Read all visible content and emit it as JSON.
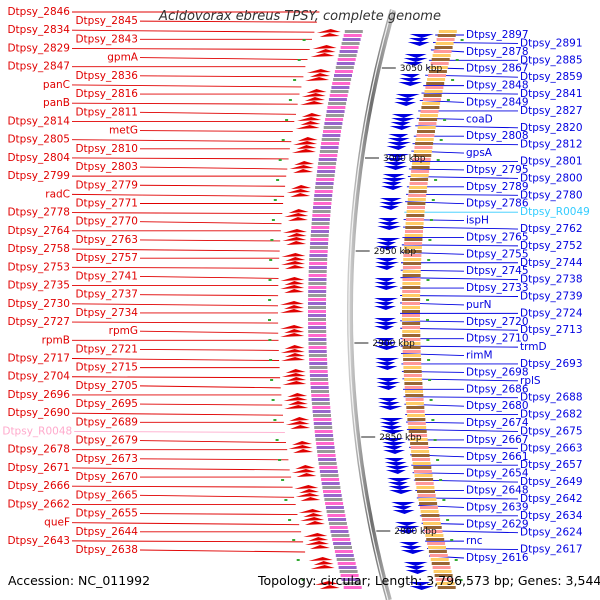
{
  "title": "Acidovorax ebreus TPSY, complete genome",
  "footer": {
    "accession": "Accession: NC_011992",
    "summary": "Topology: circular; Length: 3,796,573 bp; Genes: 3,544"
  },
  "colors": {
    "left_strand": "#e00000",
    "right_strand": "#0000e0",
    "rrna": "#ffaacc",
    "trna": "#33ccff",
    "backbone": "#999999"
  },
  "ticks": [
    {
      "label": "3050 kbp"
    },
    {
      "label": "3000 kbp"
    },
    {
      "label": "2950 kbp"
    },
    {
      "label": "2900 kbp"
    },
    {
      "label": "2850 kbp"
    },
    {
      "label": "2800 kbp"
    }
  ],
  "left_labels": [
    {
      "text": "Dtpsy_2846",
      "kind": "cds"
    },
    {
      "text": "Dtpsy_2845",
      "kind": "cds"
    },
    {
      "text": "Dtpsy_2834",
      "kind": "cds"
    },
    {
      "text": "Dtpsy_2843",
      "kind": "cds"
    },
    {
      "text": "Dtpsy_2829",
      "kind": "cds"
    },
    {
      "text": "gpmA",
      "kind": "cds"
    },
    {
      "text": "Dtpsy_2847",
      "kind": "cds"
    },
    {
      "text": "Dtpsy_2836",
      "kind": "cds"
    },
    {
      "text": "panC",
      "kind": "cds"
    },
    {
      "text": "Dtpsy_2816",
      "kind": "cds"
    },
    {
      "text": "panB",
      "kind": "cds"
    },
    {
      "text": "Dtpsy_2811",
      "kind": "cds"
    },
    {
      "text": "Dtpsy_2814",
      "kind": "cds"
    },
    {
      "text": "metG",
      "kind": "cds"
    },
    {
      "text": "Dtpsy_2805",
      "kind": "cds"
    },
    {
      "text": "Dtpsy_2810",
      "kind": "cds"
    },
    {
      "text": "Dtpsy_2804",
      "kind": "cds"
    },
    {
      "text": "Dtpsy_2803",
      "kind": "cds"
    },
    {
      "text": "Dtpsy_2799",
      "kind": "cds"
    },
    {
      "text": "Dtpsy_2779",
      "kind": "cds"
    },
    {
      "text": "radC",
      "kind": "cds"
    },
    {
      "text": "Dtpsy_2771",
      "kind": "cds"
    },
    {
      "text": "Dtpsy_2778",
      "kind": "cds"
    },
    {
      "text": "Dtpsy_2770",
      "kind": "cds"
    },
    {
      "text": "Dtpsy_2764",
      "kind": "cds"
    },
    {
      "text": "Dtpsy_2763",
      "kind": "cds"
    },
    {
      "text": "Dtpsy_2758",
      "kind": "cds"
    },
    {
      "text": "Dtpsy_2757",
      "kind": "cds"
    },
    {
      "text": "Dtpsy_2753",
      "kind": "cds"
    },
    {
      "text": "Dtpsy_2741",
      "kind": "cds"
    },
    {
      "text": "Dtpsy_2735",
      "kind": "cds"
    },
    {
      "text": "Dtpsy_2737",
      "kind": "cds"
    },
    {
      "text": "Dtpsy_2730",
      "kind": "cds"
    },
    {
      "text": "Dtpsy_2734",
      "kind": "cds"
    },
    {
      "text": "Dtpsy_2727",
      "kind": "cds"
    },
    {
      "text": "rpmG",
      "kind": "cds"
    },
    {
      "text": "rpmB",
      "kind": "cds"
    },
    {
      "text": "Dtpsy_2721",
      "kind": "cds"
    },
    {
      "text": "Dtpsy_2717",
      "kind": "cds"
    },
    {
      "text": "Dtpsy_2715",
      "kind": "cds"
    },
    {
      "text": "Dtpsy_2704",
      "kind": "cds"
    },
    {
      "text": "Dtpsy_2705",
      "kind": "cds"
    },
    {
      "text": "Dtpsy_2696",
      "kind": "cds"
    },
    {
      "text": "Dtpsy_2695",
      "kind": "cds"
    },
    {
      "text": "Dtpsy_2690",
      "kind": "cds"
    },
    {
      "text": "Dtpsy_2689",
      "kind": "cds"
    },
    {
      "text": "Dtpsy_R0048",
      "kind": "rna"
    },
    {
      "text": "Dtpsy_2679",
      "kind": "cds"
    },
    {
      "text": "Dtpsy_2678",
      "kind": "cds"
    },
    {
      "text": "Dtpsy_2673",
      "kind": "cds"
    },
    {
      "text": "Dtpsy_2671",
      "kind": "cds"
    },
    {
      "text": "Dtpsy_2670",
      "kind": "cds"
    },
    {
      "text": "Dtpsy_2666",
      "kind": "cds"
    },
    {
      "text": "Dtpsy_2665",
      "kind": "cds"
    },
    {
      "text": "Dtpsy_2662",
      "kind": "cds"
    },
    {
      "text": "Dtpsy_2655",
      "kind": "cds"
    },
    {
      "text": "queF",
      "kind": "cds"
    },
    {
      "text": "Dtpsy_2644",
      "kind": "cds"
    },
    {
      "text": "Dtpsy_2643",
      "kind": "cds"
    },
    {
      "text": "Dtpsy_2638",
      "kind": "cds"
    }
  ],
  "right_labels": [
    {
      "text": "Dtpsy_2897",
      "kind": "cds"
    },
    {
      "text": "Dtpsy_2891",
      "kind": "cds"
    },
    {
      "text": "Dtpsy_2878",
      "kind": "cds"
    },
    {
      "text": "Dtpsy_2885",
      "kind": "cds"
    },
    {
      "text": "Dtpsy_2867",
      "kind": "cds"
    },
    {
      "text": "Dtpsy_2859",
      "kind": "cds"
    },
    {
      "text": "Dtpsy_2848",
      "kind": "cds"
    },
    {
      "text": "Dtpsy_2841",
      "kind": "cds"
    },
    {
      "text": "Dtpsy_2849",
      "kind": "cds"
    },
    {
      "text": "Dtpsy_2827",
      "kind": "cds"
    },
    {
      "text": "coaD",
      "kind": "cds"
    },
    {
      "text": "Dtpsy_2820",
      "kind": "cds"
    },
    {
      "text": "Dtpsy_2808",
      "kind": "cds"
    },
    {
      "text": "Dtpsy_2812",
      "kind": "cds"
    },
    {
      "text": "gpsA",
      "kind": "cds"
    },
    {
      "text": "Dtpsy_2801",
      "kind": "cds"
    },
    {
      "text": "Dtpsy_2795",
      "kind": "cds"
    },
    {
      "text": "Dtpsy_2800",
      "kind": "cds"
    },
    {
      "text": "Dtpsy_2789",
      "kind": "cds"
    },
    {
      "text": "Dtpsy_2780",
      "kind": "cds"
    },
    {
      "text": "Dtpsy_2786",
      "kind": "cds"
    },
    {
      "text": "Dtpsy_R0049",
      "kind": "trna"
    },
    {
      "text": "ispH",
      "kind": "cds"
    },
    {
      "text": "Dtpsy_2762",
      "kind": "cds"
    },
    {
      "text": "Dtpsy_2765",
      "kind": "cds"
    },
    {
      "text": "Dtpsy_2752",
      "kind": "cds"
    },
    {
      "text": "Dtpsy_2755",
      "kind": "cds"
    },
    {
      "text": "Dtpsy_2744",
      "kind": "cds"
    },
    {
      "text": "Dtpsy_2745",
      "kind": "cds"
    },
    {
      "text": "Dtpsy_2738",
      "kind": "cds"
    },
    {
      "text": "Dtpsy_2733",
      "kind": "cds"
    },
    {
      "text": "Dtpsy_2739",
      "kind": "cds"
    },
    {
      "text": "purN",
      "kind": "cds"
    },
    {
      "text": "Dtpsy_2724",
      "kind": "cds"
    },
    {
      "text": "Dtpsy_2720",
      "kind": "cds"
    },
    {
      "text": "Dtpsy_2713",
      "kind": "cds"
    },
    {
      "text": "Dtpsy_2710",
      "kind": "cds"
    },
    {
      "text": "trmD",
      "kind": "cds"
    },
    {
      "text": "rimM",
      "kind": "cds"
    },
    {
      "text": "Dtpsy_2693",
      "kind": "cds"
    },
    {
      "text": "Dtpsy_2698",
      "kind": "cds"
    },
    {
      "text": "rplS",
      "kind": "cds"
    },
    {
      "text": "Dtpsy_2686",
      "kind": "cds"
    },
    {
      "text": "Dtpsy_2688",
      "kind": "cds"
    },
    {
      "text": "Dtpsy_2680",
      "kind": "cds"
    },
    {
      "text": "Dtpsy_2682",
      "kind": "cds"
    },
    {
      "text": "Dtpsy_2674",
      "kind": "cds"
    },
    {
      "text": "Dtpsy_2675",
      "kind": "cds"
    },
    {
      "text": "Dtpsy_2667",
      "kind": "cds"
    },
    {
      "text": "Dtpsy_2663",
      "kind": "cds"
    },
    {
      "text": "Dtpsy_2661",
      "kind": "cds"
    },
    {
      "text": "Dtpsy_2657",
      "kind": "cds"
    },
    {
      "text": "Dtpsy_2654",
      "kind": "cds"
    },
    {
      "text": "Dtpsy_2649",
      "kind": "cds"
    },
    {
      "text": "Dtpsy_2648",
      "kind": "cds"
    },
    {
      "text": "Dtpsy_2642",
      "kind": "cds"
    },
    {
      "text": "Dtpsy_2639",
      "kind": "cds"
    },
    {
      "text": "Dtpsy_2634",
      "kind": "cds"
    },
    {
      "text": "Dtpsy_2629",
      "kind": "cds"
    },
    {
      "text": "Dtpsy_2624",
      "kind": "cds"
    },
    {
      "text": "rnc",
      "kind": "cds"
    },
    {
      "text": "Dtpsy_2617",
      "kind": "cds"
    },
    {
      "text": "Dtpsy_2616",
      "kind": "cds"
    }
  ]
}
